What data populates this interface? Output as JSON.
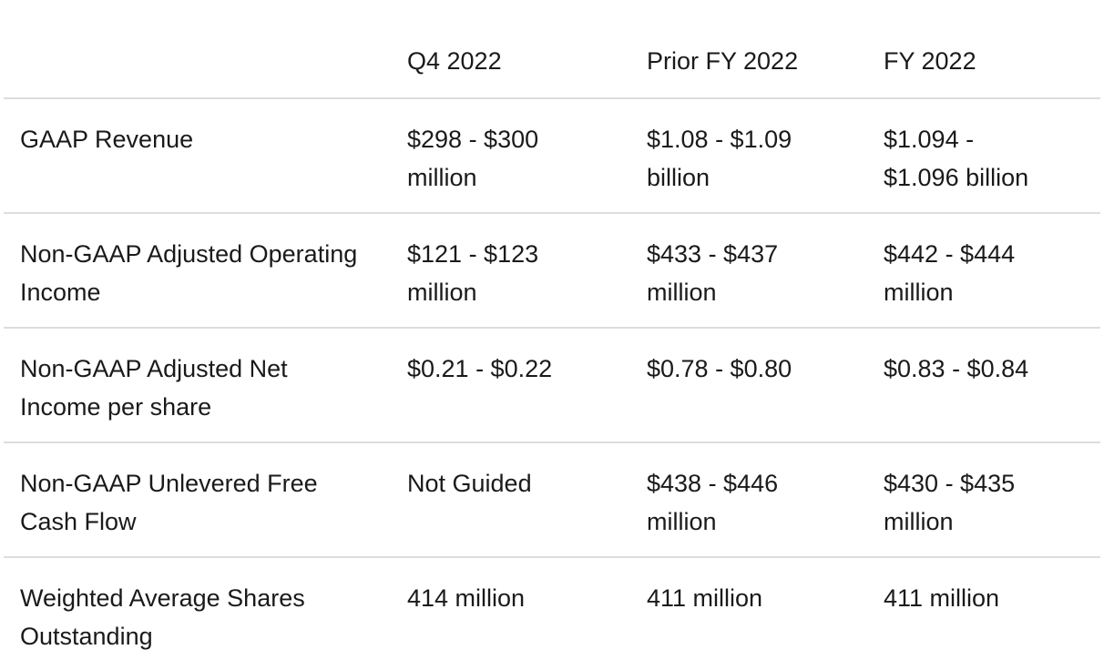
{
  "colors": {
    "background": "#ffffff",
    "text": "#1a1a1a",
    "divider": "#dddddd"
  },
  "chart_data": {
    "type": "table",
    "columns": [
      "",
      "Q4 2022",
      "Prior FY 2022",
      "FY 2022"
    ],
    "rows": [
      [
        "GAAP Revenue",
        "$298 - $300 million",
        "$1.08 - $1.09 billion",
        "$1.094 - $1.096 billion"
      ],
      [
        "Non-GAAP Adjusted Operating Income",
        "$121 - $123 million",
        "$433 - $437 million",
        "$442 - $444 million"
      ],
      [
        "Non-GAAP Adjusted Net Income per share",
        "$0.21 - $0.22",
        "$0.78 - $0.80",
        "$0.83 - $0.84"
      ],
      [
        "Non-GAAP Unlevered Free Cash Flow",
        "Not Guided",
        "$438 - $446 million",
        "$430 - $435 million"
      ],
      [
        "Weighted Average Shares Outstanding",
        "414 million",
        "411 million",
        "411 million"
      ]
    ]
  }
}
